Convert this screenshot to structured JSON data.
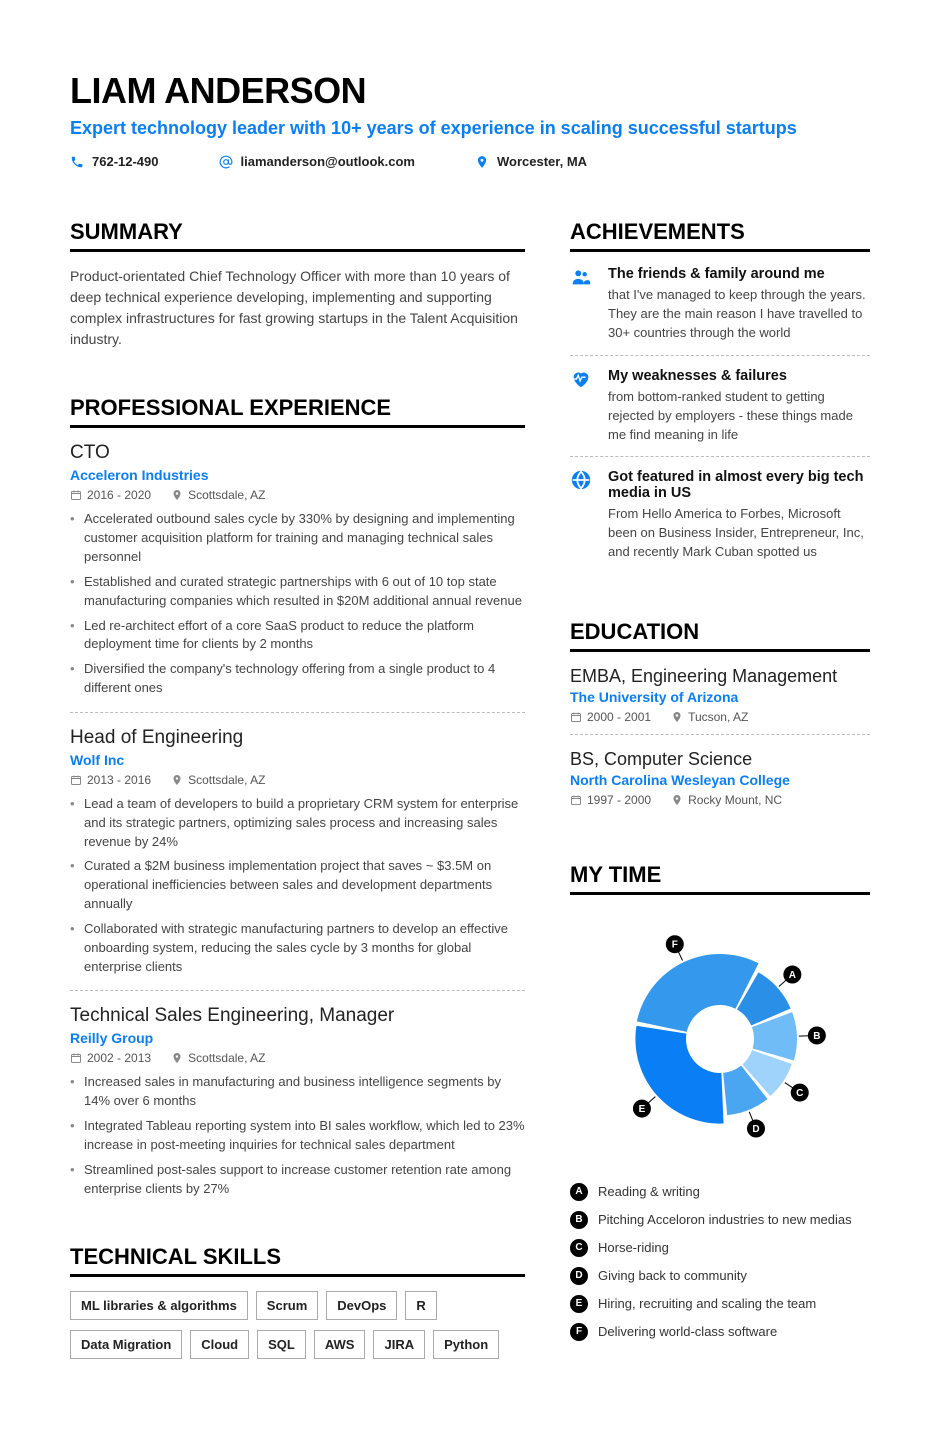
{
  "colors": {
    "accent": "#0a7ff5",
    "text": "#333333",
    "heading": "#000000",
    "muted": "#555555"
  },
  "header": {
    "name": "LIAM ANDERSON",
    "tagline": "Expert technology leader with 10+ years of experience in scaling successful startups",
    "phone": "762-12-490",
    "email": "liamanderson@outlook.com",
    "location": "Worcester, MA"
  },
  "sections": {
    "summary_title": "SUMMARY",
    "experience_title": "PROFESSIONAL EXPERIENCE",
    "skills_title": "TECHNICAL SKILLS",
    "achievements_title": "ACHIEVEMENTS",
    "education_title": "EDUCATION",
    "mytime_title": "MY TIME"
  },
  "summary": "Product-orientated Chief Technology Officer with more than 10 years of deep technical experience developing, implementing and supporting complex infrastructures for fast growing startups in the Talent Acquisition industry.",
  "experience": [
    {
      "title": "CTO",
      "company": "Acceleron Industries",
      "dates": "2016 - 2020",
      "location": "Scottsdale, AZ",
      "bullets": [
        "Accelerated outbound sales cycle by 330% by designing and implementing customer acquisition platform for training and managing technical sales personnel",
        "Established and curated strategic partnerships with 6 out of 10 top state manufacturing companies which resulted in $20M additional annual revenue",
        "Led re-architect effort of a core SaaS product to reduce the platform deployment time for clients by 2 months",
        "Diversified the company's technology offering from a single product to 4 different ones"
      ]
    },
    {
      "title": "Head of Engineering",
      "company": "Wolf Inc",
      "dates": "2013 - 2016",
      "location": "Scottsdale, AZ",
      "bullets": [
        "Lead a team of developers to build a proprietary CRM system for enterprise and its strategic partners, optimizing sales process and increasing sales revenue by 24%",
        "Curated a $2M business implementation project that saves ~ $3.5M on operational inefficiencies between sales and development departments annually",
        "Collaborated with strategic manufacturing partners to develop an effective onboarding system, reducing the sales cycle by 3 months for global enterprise clients"
      ]
    },
    {
      "title": "Technical Sales Engineering, Manager",
      "company": "Reilly Group",
      "dates": "2002 - 2013",
      "location": "Scottsdale, AZ",
      "bullets": [
        "Increased sales in manufacturing and business intelligence segments by 14% over 6 months",
        "Integrated Tableau reporting system into BI sales workflow, which led to 23% increase in post-meeting inquiries for technical sales department",
        "Streamlined post-sales support to increase customer retention rate among enterprise clients by 27%"
      ]
    }
  ],
  "skills_row1": [
    "ML libraries & algorithms",
    "Scrum",
    "DevOps",
    "R"
  ],
  "skills_row2": [
    "Data Migration",
    "Cloud",
    "SQL",
    "AWS",
    "JIRA",
    "Python"
  ],
  "achievements": [
    {
      "icon": "people-icon",
      "title": "The friends & family around me",
      "text": "that I've managed to keep through the years. They are the main reason I have travelled to 30+ countries through the world"
    },
    {
      "icon": "heart-icon",
      "title": "My weaknesses & failures",
      "text": "from bottom-ranked student to getting rejected by employers - these things made me find meaning in life"
    },
    {
      "icon": "globe-icon",
      "title": "Got featured in almost every big tech media in US",
      "text": "From Hello America to Forbes, Microsoft been on Business Insider, Entrepreneur, Inc, and recently Mark Cuban spotted us"
    }
  ],
  "education": [
    {
      "degree": "EMBA, Engineering Management",
      "school": "The University of Arizona",
      "dates": "2000 - 2001",
      "location": "Tucson, AZ"
    },
    {
      "degree": "BS, Computer Science",
      "school": "North Carolina Wesleyan College",
      "dates": "1997 - 2000",
      "location": "Rocky Mount, NC"
    }
  ],
  "mytime": {
    "type": "donut",
    "inner_radius_pct": 40,
    "gap_deg": 3,
    "background": "#ffffff",
    "slices": [
      {
        "label": "A",
        "value": 11,
        "color": "#2a8fe6",
        "legend": "Reading & writing"
      },
      {
        "label": "B",
        "value": 11,
        "color": "#6fbcf7",
        "legend": "Pitching Acceloron industries to new medias"
      },
      {
        "label": "C",
        "value": 9,
        "color": "#9fd3fb",
        "legend": "Horse-riding"
      },
      {
        "label": "D",
        "value": 10,
        "color": "#4aa6f0",
        "legend": "Giving back to community"
      },
      {
        "label": "E",
        "value": 29,
        "color": "#0a7ff5",
        "legend": "Hiring, recruiting and scaling the team"
      },
      {
        "label": "F",
        "value": 30,
        "color": "#3498ed",
        "legend": "Delivering world-class software"
      }
    ],
    "start_angle_deg": -60
  }
}
